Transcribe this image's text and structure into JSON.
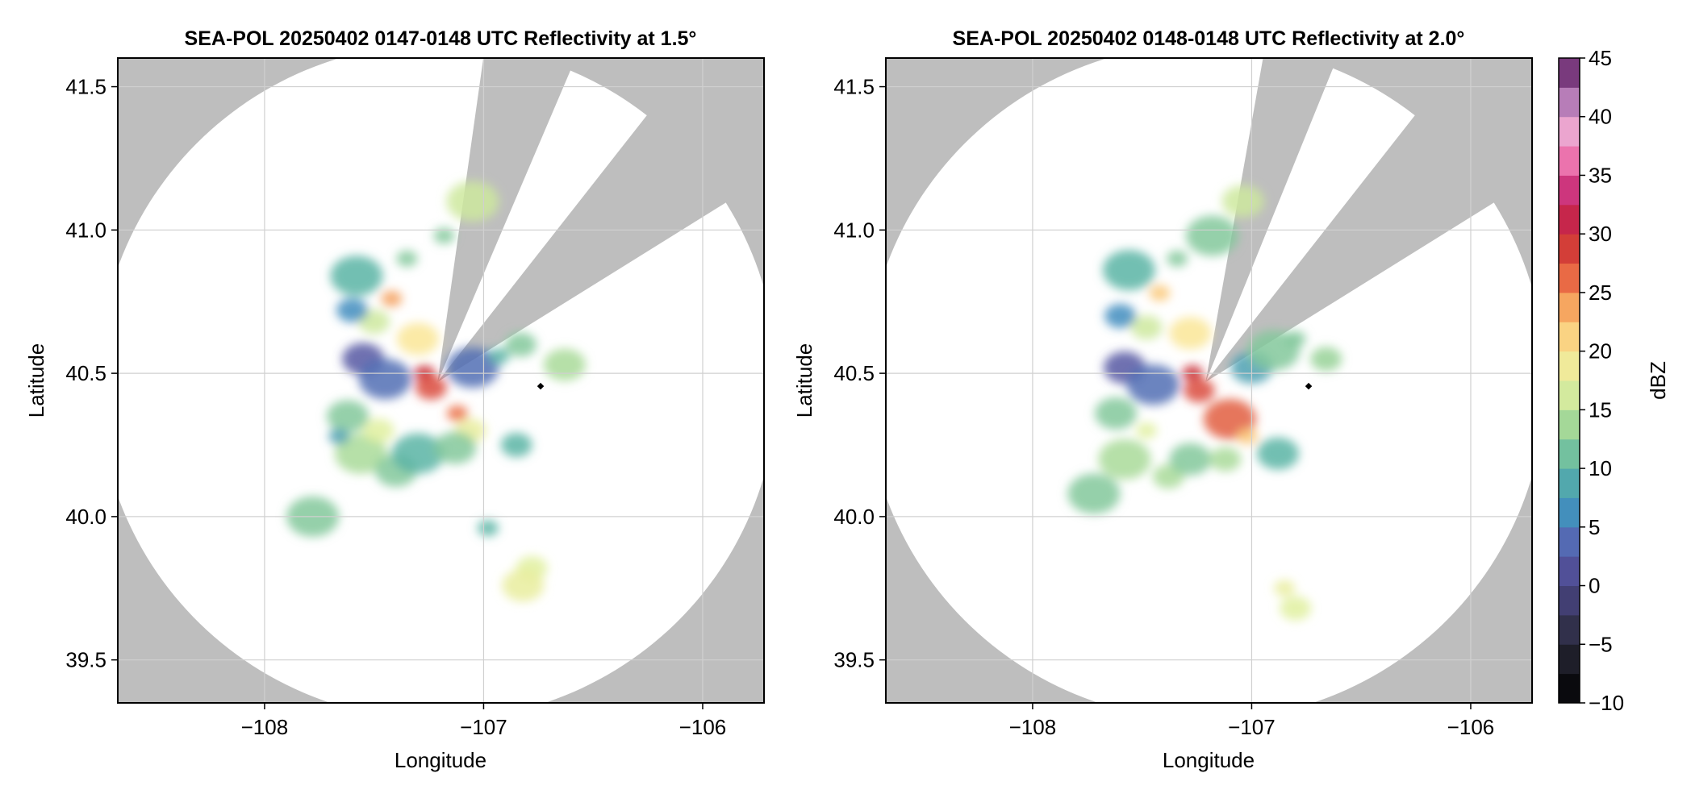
{
  "figure": {
    "colorbar": {
      "label": "dBZ",
      "min": -10,
      "max": 45,
      "step": 2.5,
      "tick_labels": [
        "−10",
        "−5",
        "0",
        "5",
        "10",
        "15",
        "20",
        "25",
        "30",
        "35",
        "40",
        "45"
      ],
      "tick_values": [
        -10,
        -5,
        0,
        5,
        10,
        15,
        20,
        25,
        30,
        35,
        40,
        45
      ]
    },
    "colors": {
      "background_outside_range": "#bebebe",
      "no_data": "#ffffff",
      "grid": "#d0d0d0",
      "site_marker": "#000000"
    }
  },
  "chart_data": [
    {
      "type": "heatmap",
      "title": "SEA-POL 20250402 0147-0148 UTC Reflectivity at 1.5°",
      "xlabel": "Longitude",
      "ylabel": "Latitude",
      "xlim": [
        -108.67,
        -105.72
      ],
      "ylim": [
        39.35,
        41.6
      ],
      "xticks": [
        -108,
        -107,
        -106
      ],
      "xtick_labels": [
        "−108",
        "−107",
        "−106"
      ],
      "yticks": [
        39.5,
        40.0,
        40.5,
        41.0,
        41.5
      ],
      "ytick_labels": [
        "39.5",
        "40.0",
        "40.5",
        "41.0",
        "41.5"
      ],
      "grid": true,
      "radar_center": [
        -107.21,
        40.47
      ],
      "radar_range_km": 131,
      "blocked_sectors_deg": [
        [
          8,
          23
        ],
        [
          38,
          58
        ]
      ],
      "site_marker": [
        -106.74,
        40.455
      ],
      "echo_cells": [
        {
          "lon": -107.42,
          "lat": 40.76,
          "dbz": 24
        },
        {
          "lon": -107.5,
          "lat": 40.68,
          "dbz": 16
        },
        {
          "lon": -107.3,
          "lat": 40.62,
          "dbz": 20
        },
        {
          "lon": -107.58,
          "lat": 40.84,
          "dbz": 10
        },
        {
          "lon": -107.35,
          "lat": 40.9,
          "dbz": 12
        },
        {
          "lon": -107.6,
          "lat": 40.72,
          "dbz": 6
        },
        {
          "lon": -107.55,
          "lat": 40.55,
          "dbz": 2
        },
        {
          "lon": -107.45,
          "lat": 40.48,
          "dbz": 4
        },
        {
          "lon": -107.27,
          "lat": 40.5,
          "dbz": 30
        },
        {
          "lon": -107.24,
          "lat": 40.45,
          "dbz": 28
        },
        {
          "lon": -107.62,
          "lat": 40.35,
          "dbz": 12
        },
        {
          "lon": -107.56,
          "lat": 40.22,
          "dbz": 14
        },
        {
          "lon": -107.66,
          "lat": 40.28,
          "dbz": 8
        },
        {
          "lon": -107.48,
          "lat": 40.3,
          "dbz": 17
        },
        {
          "lon": -107.4,
          "lat": 40.16,
          "dbz": 12
        },
        {
          "lon": -107.3,
          "lat": 40.22,
          "dbz": 10
        },
        {
          "lon": -107.12,
          "lat": 40.36,
          "dbz": 26
        },
        {
          "lon": -107.06,
          "lat": 40.3,
          "dbz": 18
        },
        {
          "lon": -107.13,
          "lat": 40.24,
          "dbz": 12
        },
        {
          "lon": -107.05,
          "lat": 40.52,
          "dbz": 4
        },
        {
          "lon": -106.93,
          "lat": 40.56,
          "dbz": 10
        },
        {
          "lon": -106.83,
          "lat": 40.6,
          "dbz": 12
        },
        {
          "lon": -106.63,
          "lat": 40.53,
          "dbz": 14
        },
        {
          "lon": -107.05,
          "lat": 41.1,
          "dbz": 16
        },
        {
          "lon": -107.18,
          "lat": 40.98,
          "dbz": 12
        },
        {
          "lon": -106.78,
          "lat": 39.82,
          "dbz": 17
        },
        {
          "lon": -106.82,
          "lat": 39.76,
          "dbz": 18
        },
        {
          "lon": -107.78,
          "lat": 40.0,
          "dbz": 12
        },
        {
          "lon": -106.98,
          "lat": 39.96,
          "dbz": 10
        },
        {
          "lon": -106.85,
          "lat": 40.25,
          "dbz": 10
        }
      ]
    },
    {
      "type": "heatmap",
      "title": "SEA-POL 20250402 0148-0148 UTC Reflectivity at 2.0°",
      "xlabel": "Longitude",
      "ylabel": "Latitude",
      "xlim": [
        -108.67,
        -105.72
      ],
      "ylim": [
        39.35,
        41.6
      ],
      "xticks": [
        -108,
        -107,
        -106
      ],
      "xtick_labels": [
        "−108",
        "−107",
        "−106"
      ],
      "yticks": [
        39.5,
        40.0,
        40.5,
        41.0,
        41.5
      ],
      "ytick_labels": [
        "39.5",
        "40.0",
        "40.5",
        "41.0",
        "41.5"
      ],
      "grid": true,
      "radar_center": [
        -107.21,
        40.47
      ],
      "radar_range_km": 131,
      "blocked_sectors_deg": [
        [
          10,
          22
        ],
        [
          38,
          58
        ]
      ],
      "site_marker": [
        -106.74,
        40.455
      ],
      "echo_cells": [
        {
          "lon": -107.42,
          "lat": 40.78,
          "dbz": 22
        },
        {
          "lon": -107.48,
          "lat": 40.66,
          "dbz": 16
        },
        {
          "lon": -107.28,
          "lat": 40.64,
          "dbz": 20
        },
        {
          "lon": -107.56,
          "lat": 40.86,
          "dbz": 10
        },
        {
          "lon": -107.34,
          "lat": 40.9,
          "dbz": 12
        },
        {
          "lon": -107.6,
          "lat": 40.7,
          "dbz": 6
        },
        {
          "lon": -107.58,
          "lat": 40.52,
          "dbz": 2
        },
        {
          "lon": -107.45,
          "lat": 40.46,
          "dbz": 4
        },
        {
          "lon": -107.27,
          "lat": 40.5,
          "dbz": 30
        },
        {
          "lon": -107.24,
          "lat": 40.44,
          "dbz": 28
        },
        {
          "lon": -107.62,
          "lat": 40.36,
          "dbz": 12
        },
        {
          "lon": -107.58,
          "lat": 40.2,
          "dbz": 14
        },
        {
          "lon": -107.48,
          "lat": 40.3,
          "dbz": 17
        },
        {
          "lon": -107.38,
          "lat": 40.14,
          "dbz": 14
        },
        {
          "lon": -107.28,
          "lat": 40.2,
          "dbz": 12
        },
        {
          "lon": -107.1,
          "lat": 40.34,
          "dbz": 27
        },
        {
          "lon": -107.02,
          "lat": 40.28,
          "dbz": 22
        },
        {
          "lon": -107.12,
          "lat": 40.2,
          "dbz": 14
        },
        {
          "lon": -107.0,
          "lat": 40.52,
          "dbz": 8
        },
        {
          "lon": -106.9,
          "lat": 40.58,
          "dbz": 12
        },
        {
          "lon": -106.8,
          "lat": 40.62,
          "dbz": 12
        },
        {
          "lon": -106.66,
          "lat": 40.55,
          "dbz": 13
        },
        {
          "lon": -107.04,
          "lat": 41.1,
          "dbz": 16
        },
        {
          "lon": -107.18,
          "lat": 40.98,
          "dbz": 12
        },
        {
          "lon": -106.85,
          "lat": 39.75,
          "dbz": 18
        },
        {
          "lon": -106.8,
          "lat": 39.68,
          "dbz": 17
        },
        {
          "lon": -106.88,
          "lat": 40.22,
          "dbz": 10
        },
        {
          "lon": -107.72,
          "lat": 40.08,
          "dbz": 12
        }
      ]
    }
  ]
}
